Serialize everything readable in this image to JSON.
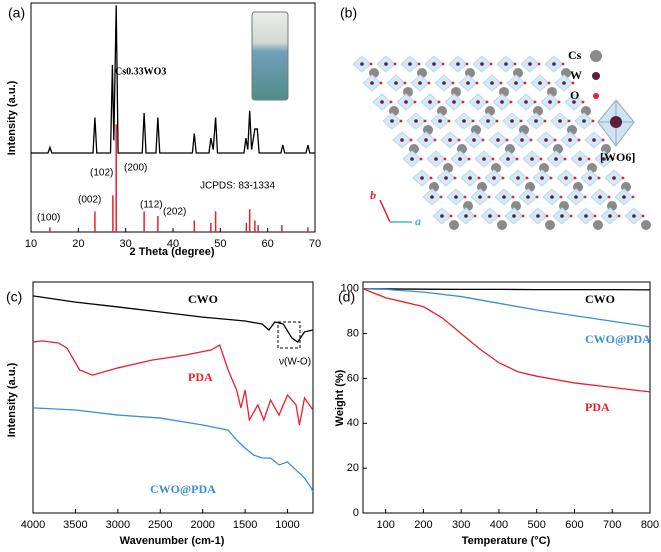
{
  "chart_data": [
    {
      "type": "line",
      "panel_label": "(a)",
      "xlabel": "2 Theta (degree)",
      "ylabel": "Intensity (a.u.)",
      "xlim": [
        10,
        70
      ],
      "xticks": [
        10,
        20,
        30,
        40,
        50,
        60,
        70
      ],
      "ylim": [
        0,
        100
      ],
      "annotations": [
        "Cs0.33WO3",
        "(100)",
        "(002)",
        "(102)",
        "(200)",
        "(112)",
        "(202)",
        "JCPDS: 83-1334"
      ],
      "series": [
        {
          "type": "line",
          "color": "#000000",
          "x": [
            10,
            13.6,
            14,
            14.4,
            23.1,
            23.5,
            23.9,
            26.8,
            27.2,
            27.5,
            28,
            28.4,
            33.5,
            33.9,
            34.3,
            36.4,
            36.8,
            37.2,
            44.1,
            44.5,
            44.9,
            47.6,
            48,
            48.5,
            49,
            49.4,
            55,
            55.4,
            55.8,
            56.2,
            56.6,
            57.3,
            57.8,
            58.2,
            62.8,
            63.2,
            63.6,
            68.1,
            68.5,
            68.9,
            70
          ],
          "values": [
            34.5,
            34.5,
            37,
            34.5,
            34.5,
            50,
            34.5,
            34.5,
            73,
            40,
            99,
            34.5,
            34.5,
            52,
            34.5,
            34.5,
            50,
            34.5,
            34.5,
            43,
            34.5,
            34.5,
            41,
            36,
            50,
            34.5,
            34.5,
            41,
            36,
            53,
            36,
            45,
            45,
            34.5,
            34.5,
            38,
            34.5,
            34.5,
            38,
            34.5,
            34.5
          ]
        },
        {
          "type": "stem",
          "color": "#e8202a",
          "x": [
            14,
            23.5,
            27.3,
            28,
            33.9,
            36.8,
            44.5,
            48,
            49,
            55.5,
            56.2,
            57.3,
            58,
            63,
            68.5
          ],
          "values": [
            2,
            9,
            16,
            47,
            9,
            7,
            5,
            4,
            9,
            4,
            10,
            5,
            3,
            3,
            2
          ]
        }
      ]
    },
    {
      "type": "line",
      "panel_label": "(c)",
      "xlabel": "Wavenumber (cm-1)",
      "ylabel": "Intensity (a.u.)",
      "xlim": [
        4000,
        700
      ],
      "xticks": [
        4000,
        3500,
        3000,
        2500,
        2000,
        1500,
        1000
      ],
      "ylim": [
        0,
        100
      ],
      "annotations": [
        "ν(W-O)"
      ],
      "series": [
        {
          "name": "CWO",
          "color": "#000000",
          "x": [
            4000,
            3500,
            3000,
            2500,
            2000,
            1500,
            1300,
            1220,
            1150,
            1050,
            950,
            880,
            800,
            700
          ],
          "values": [
            94,
            91.3,
            89.2,
            87,
            84.8,
            83.1,
            81.8,
            79.2,
            82.7,
            81.8,
            75.8,
            74,
            78.4,
            79.2
          ]
        },
        {
          "name": "PDA",
          "color": "#e8202a",
          "x": [
            4000,
            3900,
            3700,
            3600,
            3450,
            3300,
            3000,
            2600,
            2200,
            1900,
            1800,
            1700,
            1600,
            1550,
            1500,
            1450,
            1350,
            1280,
            1200,
            1100,
            1000,
            900,
            860,
            800,
            700
          ],
          "values": [
            74,
            74.5,
            73.6,
            71.4,
            61.9,
            59.7,
            62.8,
            66.2,
            68.4,
            70.6,
            72.7,
            61.9,
            53.2,
            45.5,
            53.2,
            40.3,
            46.8,
            40.3,
            48.9,
            42.4,
            51.1,
            46.8,
            38.1,
            49.8,
            44.6
          ]
        },
        {
          "name": "CWO@PDA",
          "color": "#3a8fd9",
          "x": [
            4000,
            3500,
            3000,
            2500,
            2000,
            1700,
            1600,
            1500,
            1400,
            1300,
            1200,
            1100,
            1000,
            900,
            800,
            720,
            700
          ],
          "values": [
            45.5,
            44.6,
            42.4,
            41.1,
            38.1,
            35.9,
            31.6,
            28.1,
            25.1,
            23.8,
            23.8,
            20.8,
            22.1,
            18.6,
            15.2,
            10.8,
            9.1
          ]
        }
      ]
    },
    {
      "type": "line",
      "panel_label": "(d)",
      "xlabel": "Temperature (°C)",
      "ylabel": "Weight (%)",
      "xlim": [
        40,
        800
      ],
      "xticks": [
        100,
        200,
        300,
        400,
        500,
        600,
        700,
        800
      ],
      "ylim": [
        0,
        103
      ],
      "yticks": [
        0,
        20,
        40,
        60,
        80,
        100
      ],
      "series": [
        {
          "name": "CWO",
          "color": "#000000",
          "x": [
            40,
            100,
            200,
            300,
            400,
            500,
            600,
            700,
            800
          ],
          "values": [
            100,
            99.9,
            99.8,
            99.7,
            99.7,
            99.6,
            99.6,
            99.6,
            99.5
          ]
        },
        {
          "name": "CWO@PDA",
          "color": "#3a8fd9",
          "x": [
            40,
            100,
            200,
            300,
            400,
            500,
            600,
            700,
            800
          ],
          "values": [
            100,
            99.7,
            98.5,
            96.5,
            93.5,
            90.5,
            88,
            85.5,
            83
          ]
        },
        {
          "name": "PDA",
          "color": "#e8202a",
          "x": [
            40,
            70,
            100,
            150,
            200,
            250,
            300,
            350,
            400,
            450,
            500,
            600,
            700,
            800
          ],
          "values": [
            100,
            98,
            96,
            94,
            92,
            87,
            80,
            73,
            67,
            63,
            61,
            58,
            56,
            54
          ]
        }
      ]
    }
  ],
  "diagram": {
    "panel_label": "(b)",
    "legend": [
      "Cs",
      "W",
      "O"
    ],
    "octahedron": "[WO6]",
    "axis_b": "b",
    "axis_a": "a"
  }
}
